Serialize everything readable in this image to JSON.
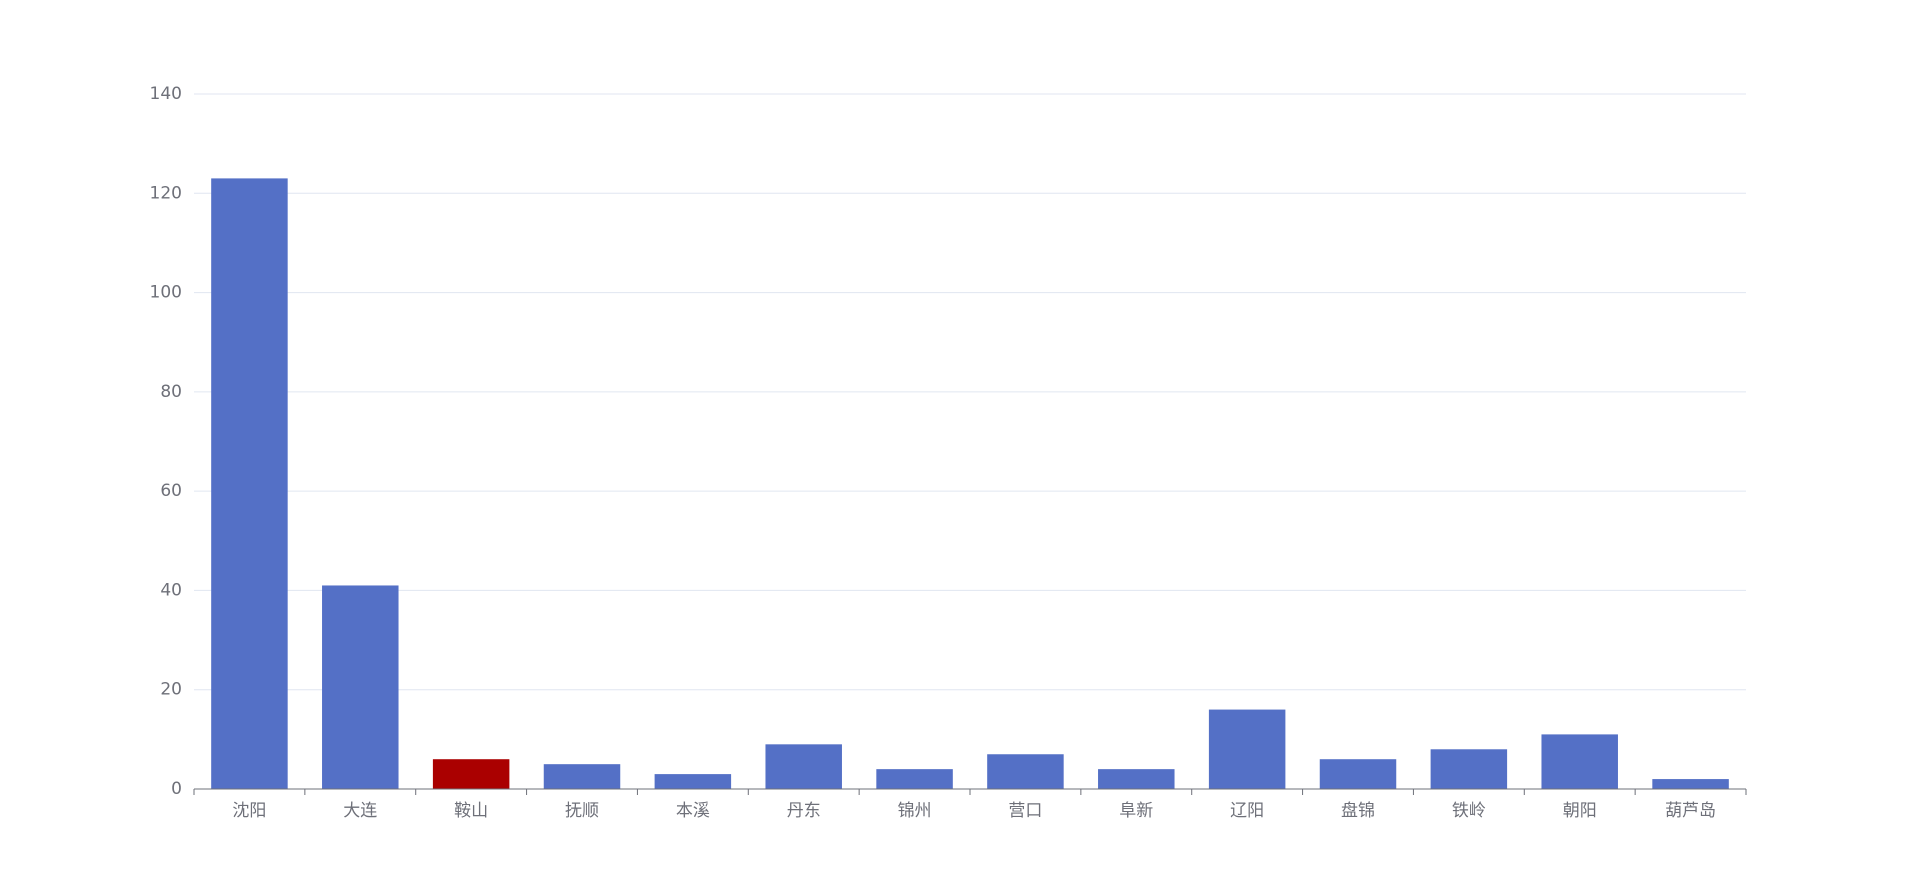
{
  "chart_data": {
    "type": "bar",
    "categories": [
      "沈阳",
      "大连",
      "鞍山",
      "抚顺",
      "本溪",
      "丹东",
      "锦州",
      "营口",
      "阜新",
      "辽阳",
      "盘锦",
      "铁岭",
      "朝阳",
      "葫芦岛"
    ],
    "values": [
      123,
      41,
      6,
      5,
      3,
      9,
      4,
      7,
      4,
      16,
      6,
      8,
      11,
      2
    ],
    "colors": [
      "#5470c6",
      "#5470c6",
      "#aa0000",
      "#5470c6",
      "#5470c6",
      "#5470c6",
      "#5470c6",
      "#5470c6",
      "#5470c6",
      "#5470c6",
      "#5470c6",
      "#5470c6",
      "#5470c6",
      "#5470c6"
    ],
    "ylim": [
      0,
      140
    ],
    "yticks": [
      0,
      20,
      40,
      60,
      80,
      100,
      120,
      140
    ],
    "grid": true
  }
}
